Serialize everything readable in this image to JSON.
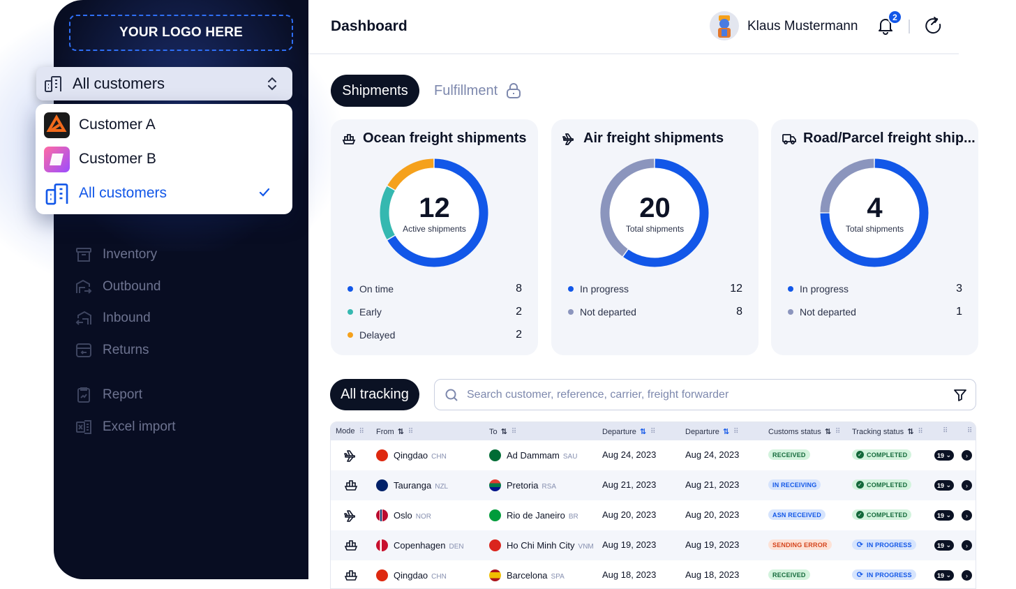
{
  "sidebar": {
    "logo": "YOUR LOGO HERE",
    "customer_selector": {
      "selected": "All customers"
    },
    "dropdown": [
      {
        "label": "Customer A",
        "icon": "customer-a-logo"
      },
      {
        "label": "Customer B",
        "icon": "customer-b-logo"
      },
      {
        "label": "All customers",
        "icon": "buildings-icon",
        "selected": true
      }
    ],
    "nav": [
      {
        "label": "Inventory",
        "icon": "inventory-icon"
      },
      {
        "label": "Outbound",
        "icon": "outbound-icon"
      },
      {
        "label": "Inbound",
        "icon": "inbound-icon"
      },
      {
        "label": "Returns",
        "icon": "returns-icon"
      },
      {
        "label": "Report",
        "icon": "report-icon"
      },
      {
        "label": "Excel import",
        "icon": "excel-icon"
      }
    ]
  },
  "header": {
    "title": "Dashboard",
    "user_name": "Klaus Mustermann",
    "notification_count": "2"
  },
  "tabs": {
    "shipments": "Shipments",
    "fulfillment": "Fulfillment"
  },
  "colors": {
    "accent": "#1257e8",
    "dark": "#0b1224",
    "orange": "#f5a11c",
    "teal": "#35b8b0",
    "gray": "#8b95bd"
  },
  "cards": [
    {
      "title": "Ocean freight shipments",
      "icon": "ship-icon",
      "total": "12",
      "caption": "Active shipments",
      "legend": [
        {
          "label": "On time",
          "value": "8",
          "color": "#1257e8"
        },
        {
          "label": "Early",
          "value": "2",
          "color": "#35b8b0"
        },
        {
          "label": "Delayed",
          "value": "2",
          "color": "#f5a11c"
        }
      ]
    },
    {
      "title": "Air freight shipments",
      "icon": "plane-icon",
      "total": "20",
      "caption": "Total shipments",
      "legend": [
        {
          "label": "In progress",
          "value": "12",
          "color": "#1257e8"
        },
        {
          "label": "Not departed",
          "value": "8",
          "color": "#8b95bd"
        }
      ]
    },
    {
      "title": "Road/Parcel freight ship...",
      "icon": "truck-icon",
      "total": "4",
      "caption": "Total shipments",
      "legend": [
        {
          "label": "In progress",
          "value": "3",
          "color": "#1257e8"
        },
        {
          "label": "Not departed",
          "value": "1",
          "color": "#8b95bd"
        }
      ]
    }
  ],
  "tracking": {
    "tab": "All tracking",
    "search_placeholder": "Search customer, reference, carrier, freight forwarder",
    "columns": [
      "Mode",
      "From",
      "To",
      "Departure",
      "Departure",
      "Customs status",
      "Tracking status"
    ],
    "rows": [
      {
        "mode": "air",
        "from": "Qingdao",
        "from_cc": "CHN",
        "to": "Ad Dammam",
        "to_cc": "SAU",
        "dep1": "Aug 24, 2023",
        "dep2": "Aug 24, 2023",
        "customs": "RECEIVED",
        "customs_style": "green",
        "tracking": "COMPLETED",
        "tracking_style": "green",
        "count": "19"
      },
      {
        "mode": "ship",
        "from": "Tauranga",
        "from_cc": "NZL",
        "to": "Pretoria",
        "to_cc": "RSA",
        "dep1": "Aug 21, 2023",
        "dep2": "Aug 21, 2023",
        "customs": "IN RECEIVING",
        "customs_style": "blue",
        "tracking": "COMPLETED",
        "tracking_style": "green",
        "count": "19"
      },
      {
        "mode": "air",
        "from": "Oslo",
        "from_cc": "NOR",
        "to": "Rio de Janeiro",
        "to_cc": "BR",
        "dep1": "Aug 20, 2023",
        "dep2": "Aug 20, 2023",
        "customs": "ASN RECEIVED",
        "customs_style": "blue",
        "tracking": "COMPLETED",
        "tracking_style": "green",
        "count": "19"
      },
      {
        "mode": "ship",
        "from": "Copenhagen",
        "from_cc": "DEN",
        "to": "Ho Chi Minh City",
        "to_cc": "VNM",
        "dep1": "Aug 19, 2023",
        "dep2": "Aug 19, 2023",
        "customs": "SENDING ERROR",
        "customs_style": "red",
        "tracking": "IN PROGRESS",
        "tracking_style": "blue",
        "count": "19"
      },
      {
        "mode": "ship",
        "from": "Qingdao",
        "from_cc": "CHN",
        "to": "Barcelona",
        "to_cc": "SPA",
        "dep1": "Aug 18, 2023",
        "dep2": "Aug 18, 2023",
        "customs": "RECEIVED",
        "customs_style": "green",
        "tracking": "IN PROGRESS",
        "tracking_style": "blue",
        "count": "19"
      }
    ]
  }
}
